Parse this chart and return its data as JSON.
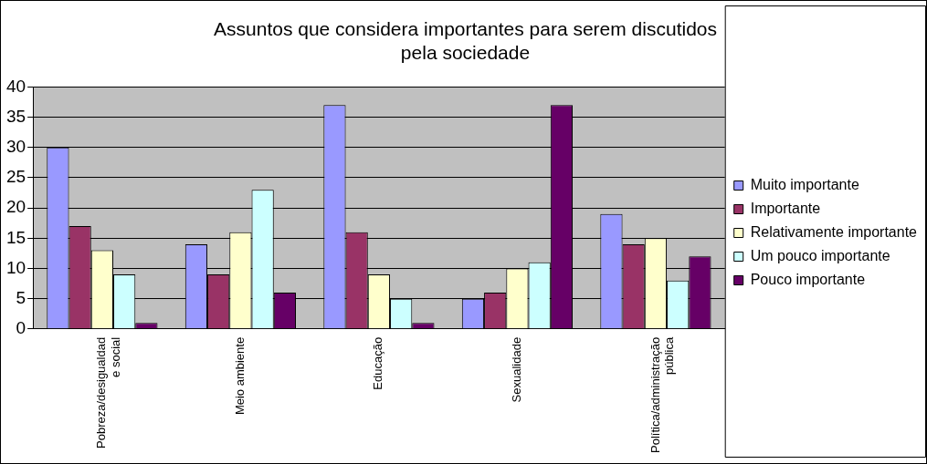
{
  "chart_data": {
    "type": "bar",
    "title": "Assuntos que considera importantes para serem discutidos pela sociedade",
    "categories": [
      "Pobreza/desigualdad e social",
      "Meio ambiente",
      "Educação",
      "Sexualidade",
      "Política/administração pública"
    ],
    "series": [
      {
        "name": "Muito importante",
        "color": "#9999ff",
        "values": [
          30,
          14,
          37,
          5,
          19
        ]
      },
      {
        "name": "Importante",
        "color": "#993366",
        "values": [
          17,
          9,
          16,
          6,
          14
        ]
      },
      {
        "name": "Relativamente importante",
        "color": "#ffffcc",
        "values": [
          13,
          16,
          9,
          10,
          15
        ]
      },
      {
        "name": "Um pouco importante",
        "color": "#ccffff",
        "values": [
          9,
          23,
          5,
          11,
          8
        ]
      },
      {
        "name": "Pouco importante",
        "color": "#660066",
        "values": [
          1,
          6,
          1,
          37,
          12
        ]
      }
    ],
    "ylim": [
      0,
      40
    ],
    "yticks": [
      0,
      5,
      10,
      15,
      20,
      25,
      30,
      35,
      40
    ],
    "grid": "y",
    "legend": "right"
  }
}
